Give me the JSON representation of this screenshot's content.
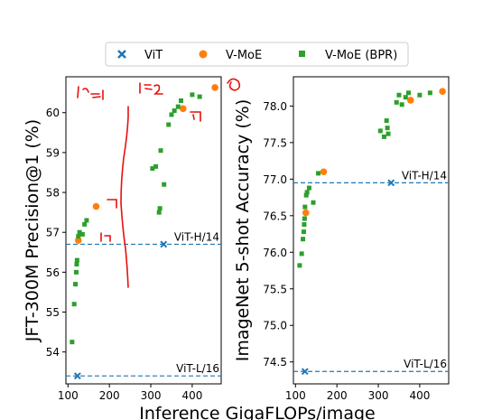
{
  "legend": {
    "items": [
      {
        "label": "ViT",
        "marker": "x",
        "color": "#1f77b4"
      },
      {
        "label": "V-MoE",
        "marker": "circle",
        "color": "#ff7f0e"
      },
      {
        "label": "V-MoE (BPR)",
        "marker": "square",
        "color": "#2ca02c"
      }
    ],
    "placement": "top-center"
  },
  "shared_xlabel": "Inference GigaFLOPs/image",
  "chart_data": [
    {
      "type": "scatter",
      "title": "",
      "xlabel": "Inference GigaFLOPs/image",
      "ylabel": "JFT-300M Precision@1 (%)",
      "xlim": [
        95,
        470
      ],
      "ylim": [
        53.2,
        60.9
      ],
      "xticks": [
        100,
        200,
        300,
        400
      ],
      "yticks": [
        54,
        55,
        56,
        57,
        58,
        59,
        60
      ],
      "grid": false,
      "series": [
        {
          "name": "ViT",
          "marker": "x",
          "color": "#1f77b4",
          "points": [
            [
              123,
              53.4
            ],
            [
              331,
              56.7
            ]
          ]
        },
        {
          "name": "V-MoE",
          "marker": "circle",
          "color": "#ff7f0e",
          "points": [
            [
              125,
              56.8
            ],
            [
              168,
              57.65
            ],
            [
              378,
              60.1
            ],
            [
              455,
              60.63
            ]
          ]
        },
        {
          "name": "V-MoE (BPR)",
          "marker": "square",
          "color": "#2ca02c",
          "points": [
            [
              110,
              54.25
            ],
            [
              115,
              55.2
            ],
            [
              118,
              55.7
            ],
            [
              120,
              56.0
            ],
            [
              121,
              56.2
            ],
            [
              122,
              56.3
            ],
            [
              125,
              56.9
            ],
            [
              128,
              57.0
            ],
            [
              135,
              56.95
            ],
            [
              140,
              57.2
            ],
            [
              145,
              57.3
            ],
            [
              304,
              58.6
            ],
            [
              312,
              58.65
            ],
            [
              320,
              57.5
            ],
            [
              322,
              57.6
            ],
            [
              324,
              59.05
            ],
            [
              332,
              58.2
            ],
            [
              343,
              59.7
            ],
            [
              350,
              59.95
            ],
            [
              357,
              60.05
            ],
            [
              366,
              60.15
            ],
            [
              373,
              60.3
            ],
            [
              400,
              60.45
            ],
            [
              418,
              60.4
            ]
          ]
        }
      ],
      "reference_lines": [
        {
          "label": "ViT-H/14",
          "y": 56.7
        },
        {
          "label": "ViT-L/16",
          "y": 53.4
        }
      ]
    },
    {
      "type": "scatter",
      "title": "",
      "xlabel": "",
      "ylabel": "ImageNet 5-shot Accuracy (%)",
      "xlim": [
        95,
        470
      ],
      "ylim": [
        74.2,
        78.4
      ],
      "xticks": [
        100,
        200,
        300,
        400
      ],
      "yticks": [
        74.5,
        75.0,
        75.5,
        76.0,
        76.5,
        77.0,
        77.5,
        78.0
      ],
      "grid": false,
      "series": [
        {
          "name": "ViT",
          "marker": "x",
          "color": "#1f77b4",
          "points": [
            [
              123,
              74.37
            ],
            [
              331,
              76.95
            ]
          ]
        },
        {
          "name": "V-MoE",
          "marker": "circle",
          "color": "#ff7f0e",
          "points": [
            [
              125,
              76.54
            ],
            [
              168,
              77.1
            ],
            [
              378,
              78.08
            ],
            [
              455,
              78.2
            ]
          ]
        },
        {
          "name": "V-MoE (BPR)",
          "marker": "square",
          "color": "#2ca02c",
          "points": [
            [
              110,
              75.82
            ],
            [
              115,
              75.98
            ],
            [
              118,
              76.18
            ],
            [
              120,
              76.28
            ],
            [
              121,
              76.38
            ],
            [
              122,
              76.46
            ],
            [
              123,
              76.62
            ],
            [
              126,
              76.78
            ],
            [
              128,
              76.82
            ],
            [
              133,
              76.88
            ],
            [
              143,
              76.68
            ],
            [
              155,
              77.08
            ],
            [
              305,
              77.66
            ],
            [
              314,
              77.58
            ],
            [
              320,
              77.8
            ],
            [
              322,
              77.7
            ],
            [
              324,
              77.62
            ],
            [
              344,
              78.05
            ],
            [
              350,
              78.15
            ],
            [
              357,
              78.02
            ],
            [
              366,
              78.12
            ],
            [
              373,
              78.18
            ],
            [
              400,
              78.15
            ],
            [
              425,
              78.18
            ]
          ]
        }
      ],
      "reference_lines": [
        {
          "label": "ViT-H/14",
          "y": 76.95
        },
        {
          "label": "ViT-L/16",
          "y": 74.37
        }
      ]
    }
  ]
}
